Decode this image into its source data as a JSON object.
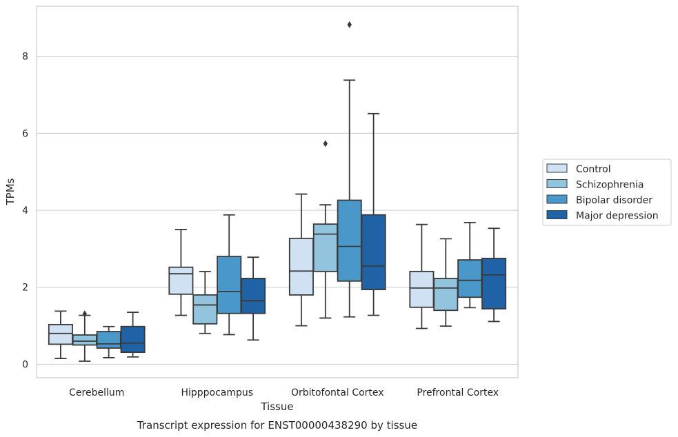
{
  "chart_data": {
    "type": "box",
    "xlabel": "Tissue",
    "ylabel": "TPMs",
    "caption": "Transcript expression for ENST00000438290 by tissue",
    "categories": [
      "Cerebellum",
      "Hipppocampus",
      "Orbitofontal Cortex",
      "Prefrontal Cortex"
    ],
    "yticks": [
      0,
      2,
      4,
      6,
      8
    ],
    "ylim": [
      -0.35,
      9.3
    ],
    "grid": "horizontal",
    "legend_position": "right",
    "series": [
      {
        "name": "Control",
        "color": "#cfe1f2",
        "boxes": [
          {
            "whisker_low": 0.15,
            "q1": 0.52,
            "median": 0.8,
            "q3": 1.03,
            "whisker_high": 1.38,
            "outliers": []
          },
          {
            "whisker_low": 1.27,
            "q1": 1.82,
            "median": 2.35,
            "q3": 2.52,
            "whisker_high": 3.5,
            "outliers": []
          },
          {
            "whisker_low": 1.0,
            "q1": 1.8,
            "median": 2.42,
            "q3": 3.27,
            "whisker_high": 4.42,
            "outliers": []
          },
          {
            "whisker_low": 0.93,
            "q1": 1.48,
            "median": 1.98,
            "q3": 2.41,
            "whisker_high": 3.63,
            "outliers": []
          }
        ]
      },
      {
        "name": "Schizophrenia",
        "color": "#93c4de",
        "boxes": [
          {
            "whisker_low": 0.08,
            "q1": 0.5,
            "median": 0.6,
            "q3": 0.76,
            "whisker_high": 1.27,
            "outliers": [
              1.31
            ]
          },
          {
            "whisker_low": 0.8,
            "q1": 1.05,
            "median": 1.54,
            "q3": 1.8,
            "whisker_high": 2.41,
            "outliers": []
          },
          {
            "whisker_low": 1.2,
            "q1": 2.41,
            "median": 3.38,
            "q3": 3.64,
            "whisker_high": 4.14,
            "outliers": [
              5.73
            ]
          },
          {
            "whisker_low": 0.99,
            "q1": 1.4,
            "median": 1.98,
            "q3": 2.23,
            "whisker_high": 3.26,
            "outliers": []
          }
        ]
      },
      {
        "name": "Bipolar disorder",
        "color": "#4a98c9",
        "boxes": [
          {
            "whisker_low": 0.17,
            "q1": 0.42,
            "median": 0.53,
            "q3": 0.85,
            "whisker_high": 0.98,
            "outliers": []
          },
          {
            "whisker_low": 0.77,
            "q1": 1.32,
            "median": 1.89,
            "q3": 2.8,
            "whisker_high": 3.88,
            "outliers": []
          },
          {
            "whisker_low": 1.23,
            "q1": 2.16,
            "median": 3.06,
            "q3": 4.26,
            "whisker_high": 7.38,
            "outliers": [
              8.82
            ]
          },
          {
            "whisker_low": 1.47,
            "q1": 1.74,
            "median": 2.18,
            "q3": 2.71,
            "whisker_high": 3.68,
            "outliers": []
          }
        ]
      },
      {
        "name": "Major depression",
        "color": "#1f62a5",
        "boxes": [
          {
            "whisker_low": 0.19,
            "q1": 0.31,
            "median": 0.55,
            "q3": 0.98,
            "whisker_high": 1.35,
            "outliers": []
          },
          {
            "whisker_low": 0.63,
            "q1": 1.32,
            "median": 1.65,
            "q3": 2.23,
            "whisker_high": 2.78,
            "outliers": []
          },
          {
            "whisker_low": 1.27,
            "q1": 1.94,
            "median": 2.55,
            "q3": 3.88,
            "whisker_high": 6.51,
            "outliers": []
          },
          {
            "whisker_low": 1.11,
            "q1": 1.44,
            "median": 2.32,
            "q3": 2.75,
            "whisker_high": 3.53,
            "outliers": []
          }
        ]
      }
    ]
  }
}
